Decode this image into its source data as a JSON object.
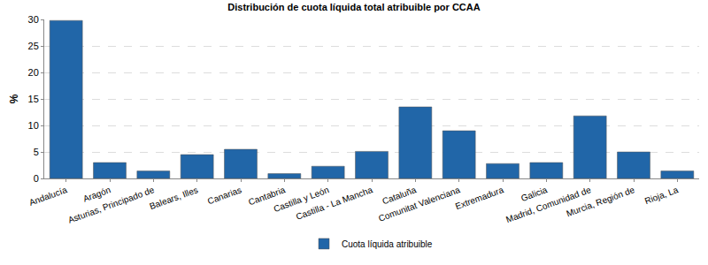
{
  "chart_data": {
    "type": "bar",
    "title": "Distribución de cuota líquida total atribuible por CCAA",
    "y_label": "%",
    "categories": [
      "Andalucía",
      "Aragón",
      "Asturias, Principado de",
      "Balears, Illes",
      "Canarias",
      "Cantabria",
      "Castilla y León",
      "Castilla - La Mancha",
      "Cataluña",
      "Comunitat Valenciana",
      "Extremadura",
      "Galicia",
      "Madrid, Comunidad de",
      "Murcia, Región de",
      "Rioja, La"
    ],
    "series": [
      {
        "name": "Cuota líquida atribuible",
        "color": "#2166a8",
        "values": [
          29.8,
          3.0,
          1.4,
          4.5,
          5.5,
          0.9,
          2.3,
          5.1,
          13.5,
          9.0,
          2.8,
          3.0,
          11.8,
          5.0,
          1.4
        ]
      }
    ],
    "ylim": [
      0,
      30
    ],
    "yticks": [
      0,
      5,
      10,
      15,
      20,
      25,
      30
    ],
    "grid": true,
    "legend": "bottom"
  }
}
